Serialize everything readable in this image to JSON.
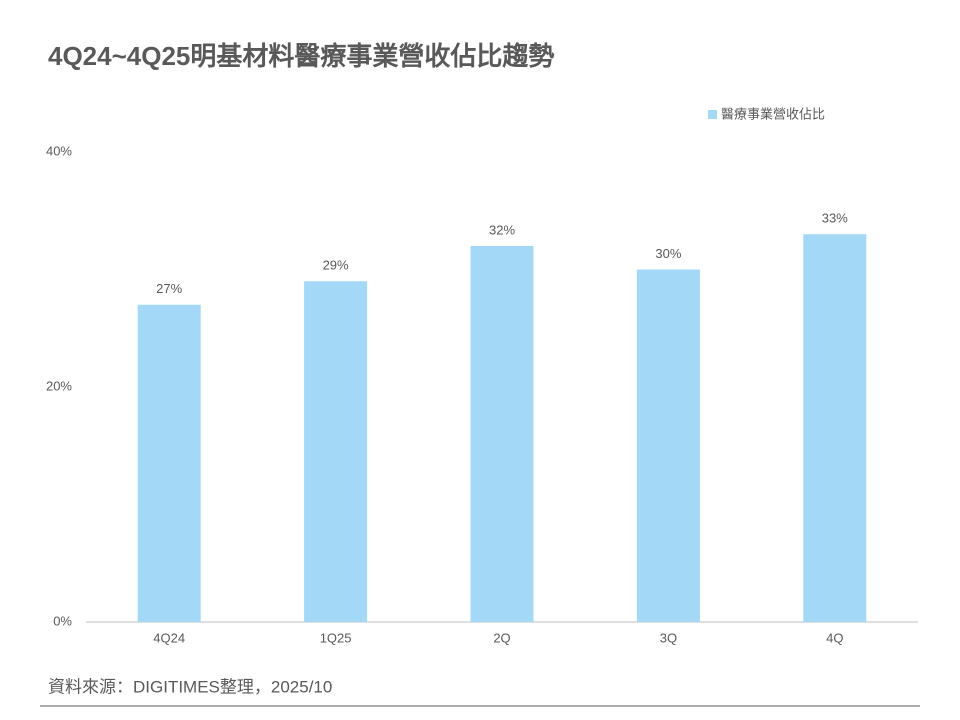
{
  "chart_data": {
    "type": "bar",
    "title": "4Q24~4Q25明基材料醫療事業營收佔比趨勢",
    "categories": [
      "4Q24",
      "1Q25",
      "2Q",
      "3Q",
      "4Q"
    ],
    "series": [
      {
        "name": "醫療事業營收佔比",
        "color": "#a3d9f7",
        "values": [
          27,
          29,
          32,
          30,
          33
        ],
        "value_labels": [
          "27%",
          "29%",
          "32%",
          "30%",
          "33%"
        ]
      }
    ],
    "ylim": [
      0,
      40
    ],
    "yticks": [
      {
        "value": 0,
        "label": "0%"
      },
      {
        "value": 20,
        "label": "20%"
      },
      {
        "value": 40,
        "label": "40%"
      }
    ],
    "grid": false,
    "legend": "top-right",
    "source": "資料來源：DIGITIMES整理，2025/10"
  }
}
